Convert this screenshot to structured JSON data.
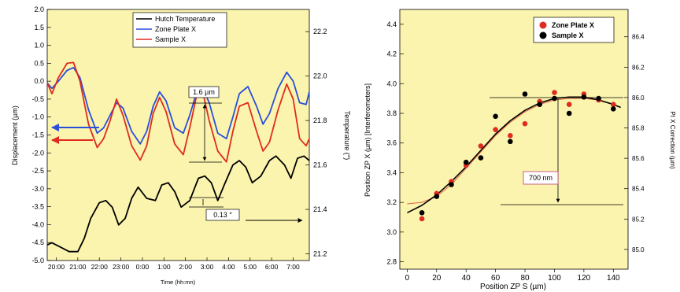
{
  "colors": {
    "panel_bg": "#fbf4ae",
    "hutch": "#000000",
    "zone_plate": "#2b4fd9",
    "sample": "#e02b1f",
    "fit_red": "#e0603c",
    "annotation_box": "#c0397b"
  },
  "chart_data": [
    {
      "type": "line",
      "xlabel": "Time (hh:mn)",
      "ylabel": "Displacement (µm)",
      "y2label": "Temperature (°)",
      "categories": [
        "20:00",
        "21:00",
        "22:00",
        "23:00",
        "0:00",
        "1:00",
        "2:00",
        "3:00",
        "4:00",
        "5:00",
        "6:00",
        "7:00"
      ],
      "x_tick_hours": [
        0,
        1,
        2,
        3,
        4,
        5,
        6,
        7,
        8,
        9,
        10,
        11
      ],
      "xlim": [
        -0.42,
        11.75
      ],
      "ylim": [
        -5.0,
        2.0
      ],
      "y_ticks": [
        2.0,
        1.5,
        1.0,
        0.5,
        0.0,
        -0.5,
        -1.0,
        -1.5,
        -2.0,
        -2.5,
        -3.0,
        -3.5,
        -4.0,
        -4.5,
        -5.0
      ],
      "y_tick_labels": [
        "2.0",
        "1.5",
        "1.0",
        "0.5",
        "0.0",
        "-0.5",
        "-1.0",
        "-1.5",
        "-2.0",
        "-2.5",
        "-3.0",
        "-3.5",
        "-4.0",
        "-4.5",
        "-5.0"
      ],
      "y2lim": [
        21.17,
        22.3
      ],
      "y2_ticks": [
        22.2,
        22.0,
        21.8,
        21.6,
        21.4,
        21.2
      ],
      "y2_tick_labels": [
        "22.2",
        "22.0",
        "21.8",
        "21.6",
        "21.4",
        "21.2"
      ],
      "legend_position": "top-center",
      "grid": false,
      "series": [
        {
          "name": "Hutch Temperature",
          "axis": "y2",
          "x": [
            -0.42,
            -0.2,
            0.2,
            0.6,
            1.0,
            1.3,
            1.6,
            2.0,
            2.3,
            2.6,
            2.9,
            3.2,
            3.5,
            3.8,
            4.2,
            4.6,
            4.9,
            5.2,
            5.5,
            5.8,
            6.2,
            6.6,
            6.9,
            7.2,
            7.5,
            7.8,
            8.2,
            8.5,
            8.8,
            9.1,
            9.5,
            9.9,
            10.2,
            10.6,
            10.9,
            11.2,
            11.5,
            11.75
          ],
          "values": [
            21.24,
            21.25,
            21.23,
            21.21,
            21.21,
            21.27,
            21.36,
            21.43,
            21.44,
            21.41,
            21.33,
            21.36,
            21.45,
            21.5,
            21.45,
            21.44,
            21.51,
            21.52,
            21.48,
            21.41,
            21.44,
            21.54,
            21.55,
            21.52,
            21.44,
            21.51,
            21.6,
            21.62,
            21.59,
            21.52,
            21.55,
            21.62,
            21.64,
            21.6,
            21.54,
            21.63,
            21.64,
            21.62
          ]
        },
        {
          "name": "Zone Plate X",
          "axis": "y",
          "x": [
            -0.42,
            -0.2,
            0.1,
            0.5,
            0.8,
            1.1,
            1.5,
            1.9,
            2.2,
            2.5,
            2.8,
            3.1,
            3.5,
            3.9,
            4.2,
            4.5,
            4.8,
            5.1,
            5.5,
            5.9,
            6.2,
            6.5,
            6.8,
            7.1,
            7.5,
            7.9,
            8.2,
            8.5,
            8.9,
            9.3,
            9.6,
            9.9,
            10.3,
            10.7,
            11.0,
            11.3,
            11.6,
            11.75
          ],
          "values": [
            -0.05,
            -0.2,
            0.0,
            0.3,
            0.38,
            0.1,
            -0.8,
            -1.45,
            -1.3,
            -0.95,
            -0.6,
            -0.75,
            -1.4,
            -1.75,
            -1.4,
            -0.7,
            -0.3,
            -0.55,
            -1.3,
            -1.45,
            -0.95,
            -0.35,
            -0.2,
            -0.6,
            -1.45,
            -1.6,
            -1.0,
            -0.35,
            -0.15,
            -0.7,
            -1.2,
            -0.9,
            -0.2,
            0.25,
            0.0,
            -0.6,
            -0.65,
            -0.3
          ]
        },
        {
          "name": "Sample X",
          "axis": "y",
          "x": [
            -0.42,
            -0.2,
            0.1,
            0.5,
            0.8,
            1.1,
            1.5,
            1.9,
            2.2,
            2.5,
            2.8,
            3.1,
            3.5,
            3.9,
            4.2,
            4.5,
            4.8,
            5.1,
            5.5,
            5.9,
            6.2,
            6.5,
            6.8,
            7.1,
            7.5,
            7.9,
            8.2,
            8.5,
            8.9,
            9.3,
            9.6,
            9.9,
            10.3,
            10.7,
            11.0,
            11.3,
            11.6,
            11.75
          ],
          "values": [
            -0.05,
            -0.35,
            0.1,
            0.5,
            0.52,
            0.0,
            -1.2,
            -1.85,
            -1.6,
            -1.1,
            -0.5,
            -0.95,
            -1.8,
            -2.2,
            -1.8,
            -0.9,
            -0.45,
            -0.85,
            -1.75,
            -2.05,
            -1.3,
            -0.45,
            -0.3,
            -1.1,
            -1.95,
            -2.25,
            -1.4,
            -0.7,
            -0.6,
            -1.4,
            -1.95,
            -1.7,
            -0.8,
            -0.08,
            -0.5,
            -1.6,
            -1.8,
            -1.6
          ]
        }
      ],
      "annotations": [
        {
          "text": "1.6 µm"
        },
        {
          "text": "0.13 °"
        }
      ]
    },
    {
      "type": "scatter",
      "xlabel": "Position ZP S (µm)",
      "ylabel": "Position ZP X (µm) [Interferometers]",
      "y2label": "PI X Correction (µm)",
      "xlim": [
        -5,
        150
      ],
      "ylim": [
        2.75,
        4.5
      ],
      "y2lim": [
        84.87,
        86.58
      ],
      "x_ticks": [
        0,
        20,
        40,
        60,
        80,
        100,
        120,
        140
      ],
      "x_tick_labels": [
        "0",
        "20",
        "40",
        "60",
        "80",
        "100",
        "120",
        "140"
      ],
      "y_ticks": [
        4.4,
        4.2,
        4.0,
        3.8,
        3.6,
        3.4,
        3.2,
        3.0,
        2.8
      ],
      "y_tick_labels": [
        "4.4",
        "4.2",
        "4.0",
        "3.8",
        "3.6",
        "3.4",
        "3.2",
        "3.0",
        "2.8"
      ],
      "y2_ticks": [
        86.4,
        86.2,
        86.0,
        85.8,
        85.6,
        85.4,
        85.2,
        85.0
      ],
      "y2_tick_labels": [
        "86.4",
        "86.2",
        "86.0",
        "85.8",
        "85.6",
        "85.4",
        "85.2",
        "85.0"
      ],
      "legend_position": "top-left",
      "grid": false,
      "series": [
        {
          "name": "Zone Plate X",
          "x": [
            10,
            20,
            30,
            40,
            50,
            60,
            70,
            80,
            90,
            100,
            110,
            120,
            130,
            140
          ],
          "values": [
            3.09,
            3.26,
            3.34,
            3.45,
            3.58,
            3.69,
            3.65,
            3.73,
            3.88,
            3.94,
            3.86,
            3.93,
            3.89,
            3.86
          ]
        },
        {
          "name": "Sample X",
          "x": [
            10,
            20,
            30,
            40,
            50,
            60,
            70,
            80,
            90,
            100,
            110,
            120,
            130,
            140
          ],
          "values": [
            3.13,
            3.24,
            3.32,
            3.47,
            3.5,
            3.78,
            3.61,
            3.93,
            3.86,
            3.9,
            3.8,
            3.91,
            3.9,
            3.83
          ]
        },
        {
          "x": [
            0,
            10,
            20,
            30,
            40,
            50,
            60,
            70,
            80,
            90,
            100,
            110,
            120,
            130,
            140,
            145
          ],
          "values": [
            3.19,
            3.2,
            3.24,
            3.32,
            3.43,
            3.54,
            3.65,
            3.74,
            3.81,
            3.86,
            3.89,
            3.9,
            3.9,
            3.89,
            3.86,
            3.84
          ]
        },
        {
          "x": [
            0,
            10,
            20,
            30,
            40,
            50,
            60,
            70,
            80,
            90,
            100,
            110,
            120,
            130,
            140,
            145
          ],
          "values": [
            3.13,
            3.18,
            3.25,
            3.34,
            3.44,
            3.55,
            3.66,
            3.75,
            3.82,
            3.87,
            3.9,
            3.91,
            3.91,
            3.89,
            3.86,
            3.84
          ]
        }
      ],
      "annotations": [
        {
          "text": "700 nm"
        }
      ]
    }
  ]
}
